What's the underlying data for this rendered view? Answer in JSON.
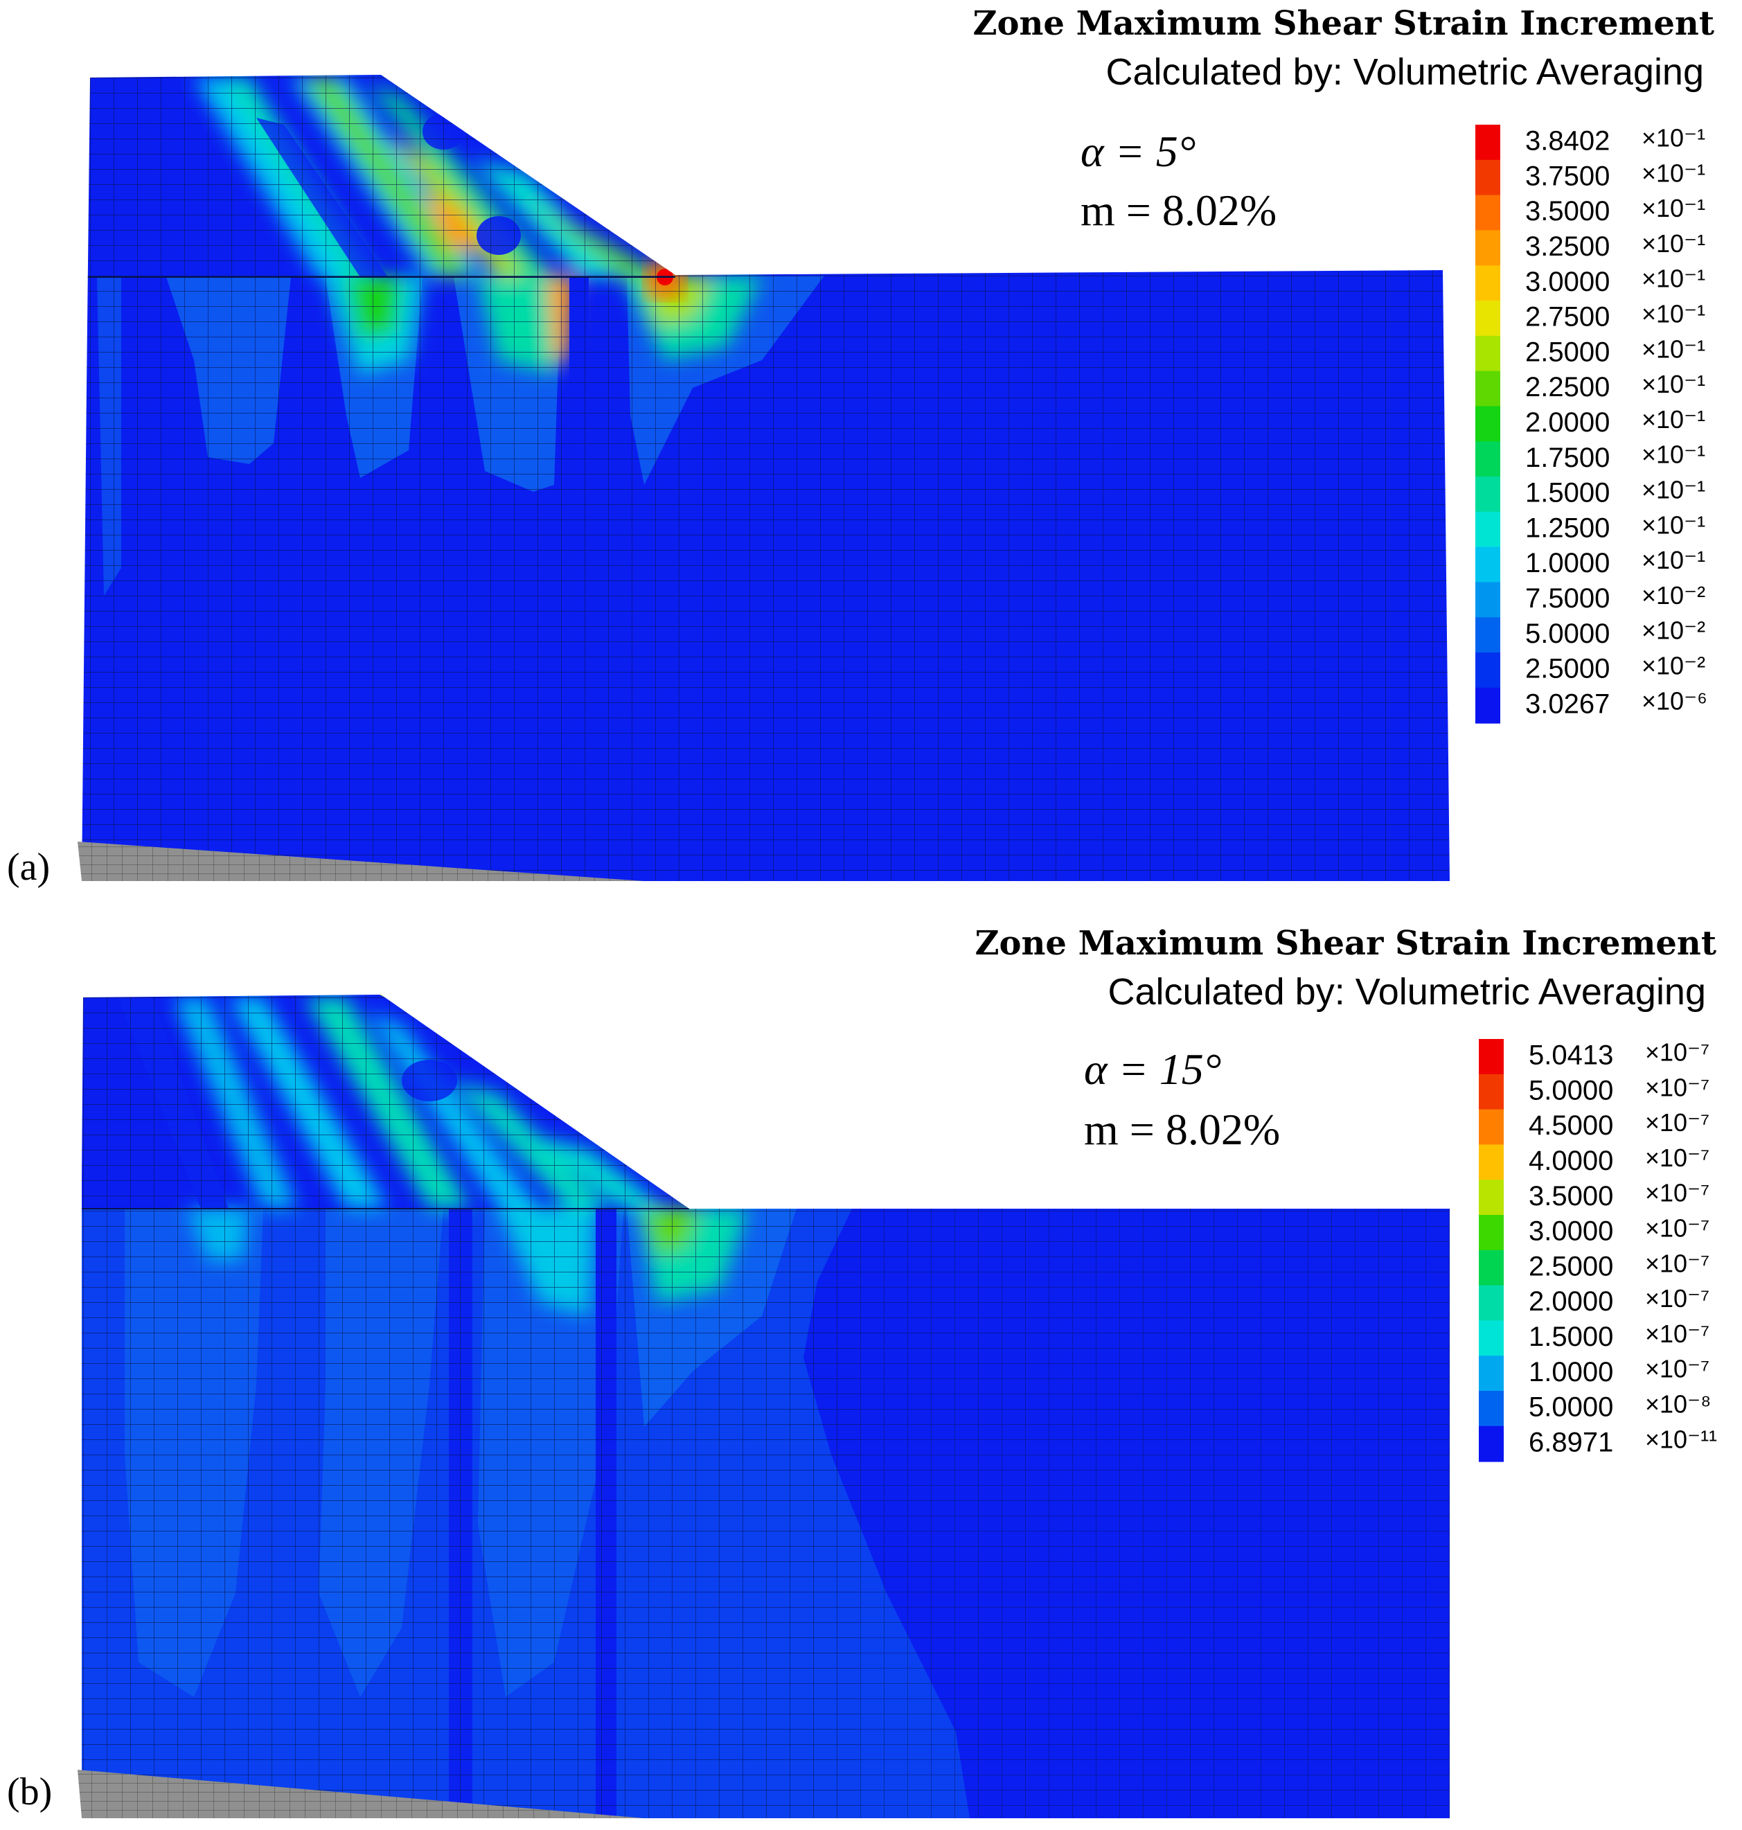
{
  "panels": [
    {
      "label": "(a)",
      "title": "Zone Maximum Shear Strain Increment",
      "subtitle": "Calculated by: Volumetric Averaging",
      "alpha_text": "α = 5°",
      "m_text": "m = 8.02%",
      "legend": [
        {
          "value": "3.8402",
          "exp": "×10⁻¹",
          "color": "#f00000"
        },
        {
          "value": "3.7500",
          "exp": "×10⁻¹",
          "color": "#f23a00"
        },
        {
          "value": "3.5000",
          "exp": "×10⁻¹",
          "color": "#ff7000"
        },
        {
          "value": "3.2500",
          "exp": "×10⁻¹",
          "color": "#ff9c00"
        },
        {
          "value": "3.0000",
          "exp": "×10⁻¹",
          "color": "#ffc400"
        },
        {
          "value": "2.7500",
          "exp": "×10⁻¹",
          "color": "#e8e400"
        },
        {
          "value": "2.5000",
          "exp": "×10⁻¹",
          "color": "#a8e400"
        },
        {
          "value": "2.2500",
          "exp": "×10⁻¹",
          "color": "#5ed800"
        },
        {
          "value": "2.0000",
          "exp": "×10⁻¹",
          "color": "#14d414"
        },
        {
          "value": "1.7500",
          "exp": "×10⁻¹",
          "color": "#00d65a"
        },
        {
          "value": "1.5000",
          "exp": "×10⁻¹",
          "color": "#00dc9c"
        },
        {
          "value": "1.2500",
          "exp": "×10⁻¹",
          "color": "#00e4d4"
        },
        {
          "value": "1.0000",
          "exp": "×10⁻¹",
          "color": "#00c4f0"
        },
        {
          "value": "7.5000",
          "exp": "×10⁻²",
          "color": "#0096f0"
        },
        {
          "value": "5.0000",
          "exp": "×10⁻²",
          "color": "#0064f0"
        },
        {
          "value": "2.5000",
          "exp": "×10⁻²",
          "color": "#0032f0"
        },
        {
          "value": "3.0267",
          "exp": "×10⁻⁶",
          "color": "#0a14f0"
        }
      ]
    },
    {
      "label": "(b)",
      "title": "Zone Maximum Shear Strain Increment",
      "subtitle": "Calculated by: Volumetric Averaging",
      "alpha_text": "α = 15°",
      "m_text": "m = 8.02%",
      "legend": [
        {
          "value": "5.0413",
          "exp": "×10⁻⁷",
          "color": "#f00000"
        },
        {
          "value": "5.0000",
          "exp": "×10⁻⁷",
          "color": "#f23a00"
        },
        {
          "value": "4.5000",
          "exp": "×10⁻⁷",
          "color": "#ff8000"
        },
        {
          "value": "4.0000",
          "exp": "×10⁻⁷",
          "color": "#ffc000"
        },
        {
          "value": "3.5000",
          "exp": "×10⁻⁷",
          "color": "#b8e400"
        },
        {
          "value": "3.0000",
          "exp": "×10⁻⁷",
          "color": "#3cd800"
        },
        {
          "value": "2.5000",
          "exp": "×10⁻⁷",
          "color": "#00d450"
        },
        {
          "value": "2.0000",
          "exp": "×10⁻⁷",
          "color": "#00dca8"
        },
        {
          "value": "1.5000",
          "exp": "×10⁻⁷",
          "color": "#00e4d8"
        },
        {
          "value": "1.0000",
          "exp": "×10⁻⁷",
          "color": "#00a8f0"
        },
        {
          "value": "5.0000",
          "exp": "×10⁻⁸",
          "color": "#0064f0"
        },
        {
          "value": "6.8971",
          "exp": "×10⁻¹¹",
          "color": "#0a14f0"
        }
      ]
    }
  ]
}
